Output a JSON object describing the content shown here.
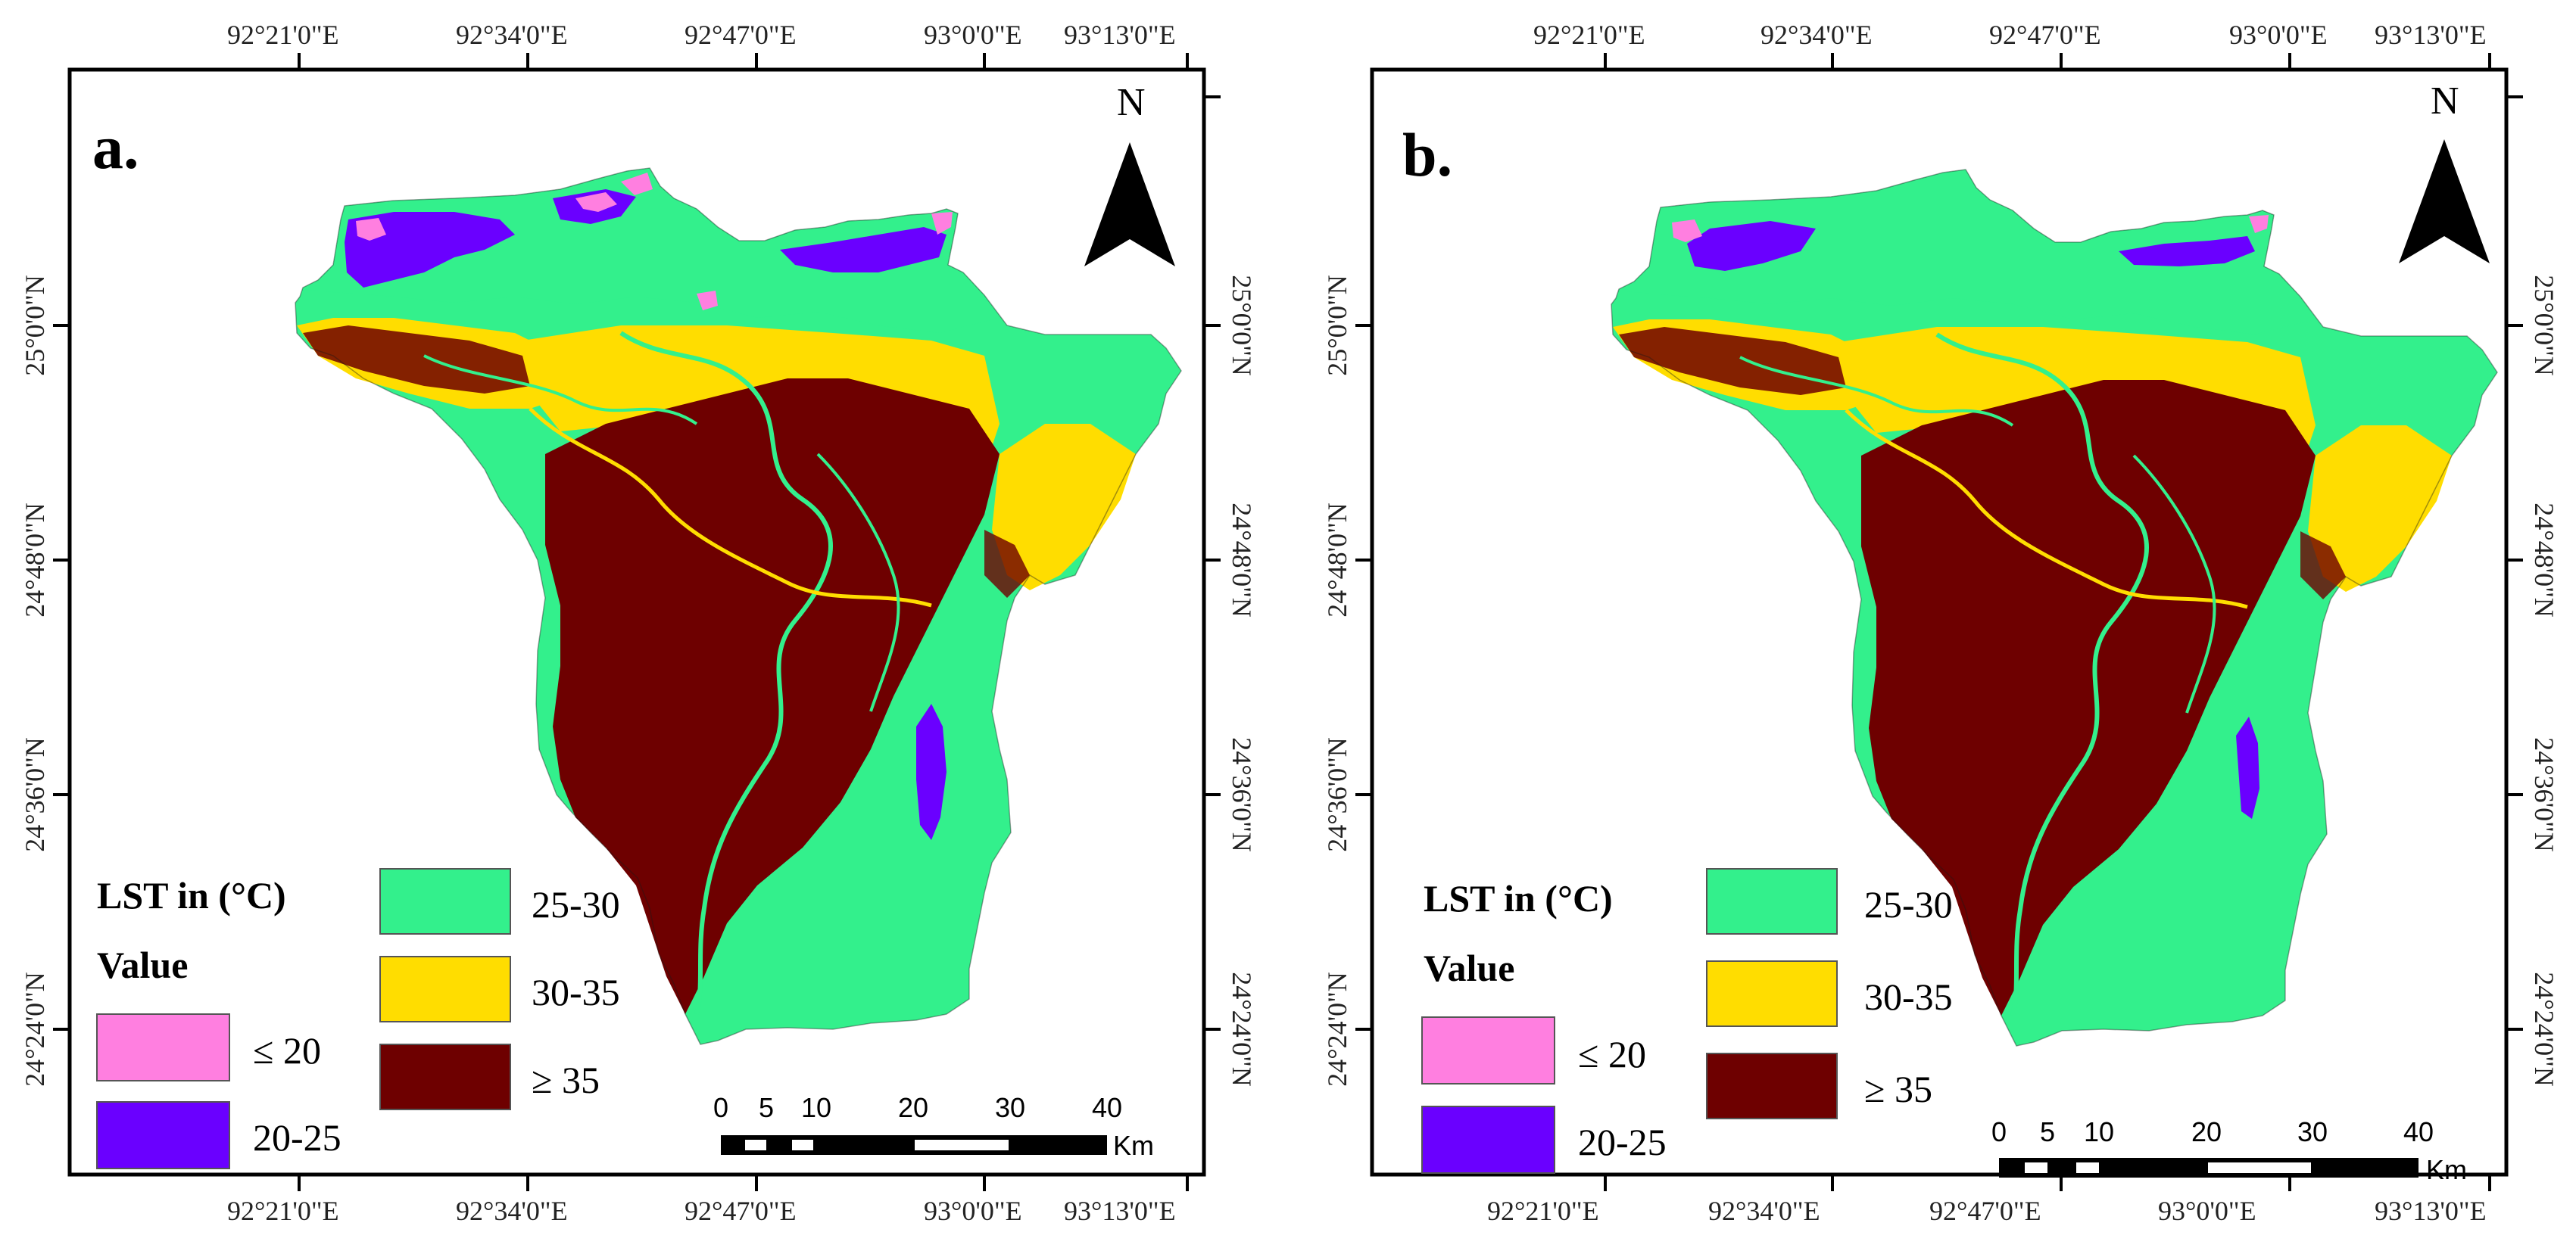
{
  "figure": {
    "panels": [
      {
        "id": "a",
        "label": "a.",
        "north_label": "N",
        "top_ticks": [
          "92°21'0\"E",
          "92°34'0\"E",
          "92°47'0\"E",
          "93°0'0\"E",
          "93°13'0\"E"
        ],
        "bottom_ticks": [
          "92°21'0\"E",
          "92°34'0\"E",
          "92°47'0\"E",
          "93°0'0\"E",
          "93°13'0\"E"
        ],
        "left_ticks": [
          "25°0'0\"N",
          "24°48'0\"N",
          "24°36'0\"N",
          "24°24'0\"N"
        ],
        "right_ticks": [
          "25°0'0\"N",
          "24°48'0\"N",
          "24°36'0\"N",
          "24°24'0\"N"
        ],
        "legend": {
          "title": "LST in (°C)",
          "subtitle": "Value",
          "classes": [
            {
              "label": "≤ 20",
              "color": "#ff7fe0"
            },
            {
              "label": "20-25",
              "color": "#6a00ff"
            },
            {
              "label": "25-30",
              "color": "#33f08c"
            },
            {
              "label": "30-35",
              "color": "#ffdd00"
            },
            {
              "label": "≥ 35",
              "color": "#6e0000"
            }
          ]
        },
        "scale_bar": {
          "ticks": [
            "0",
            "5",
            "10",
            "20",
            "30",
            "40"
          ],
          "unit": "Km"
        }
      },
      {
        "id": "b",
        "label": "b.",
        "north_label": "N",
        "top_ticks": [
          "92°21'0\"E",
          "92°34'0\"E",
          "92°47'0\"E",
          "93°0'0\"E",
          "93°13'0\"E"
        ],
        "bottom_ticks": [
          "92°21'0\"E",
          "92°34'0\"E",
          "92°47'0\"E",
          "93°0'0\"E",
          "93°13'0\"E"
        ],
        "left_ticks": [
          "25°0'0\"N",
          "24°48'0\"N",
          "24°36'0\"N",
          "24°24'0\"N"
        ],
        "right_ticks": [
          "25°0'0\"N",
          "24°48'0\"N",
          "24°36'0\"N",
          "24°24'0\"N"
        ],
        "legend": {
          "title": "LST in (°C)",
          "subtitle": "Value",
          "classes": [
            {
              "label": "≤ 20",
              "color": "#ff7fe0"
            },
            {
              "label": "20-25",
              "color": "#6a00ff"
            },
            {
              "label": "25-30",
              "color": "#33f08c"
            },
            {
              "label": "30-35",
              "color": "#ffdd00"
            },
            {
              "label": "≥ 35",
              "color": "#6e0000"
            }
          ]
        },
        "scale_bar": {
          "ticks": [
            "0",
            "5",
            "10",
            "20",
            "30",
            "40"
          ],
          "unit": "Km"
        }
      }
    ]
  }
}
